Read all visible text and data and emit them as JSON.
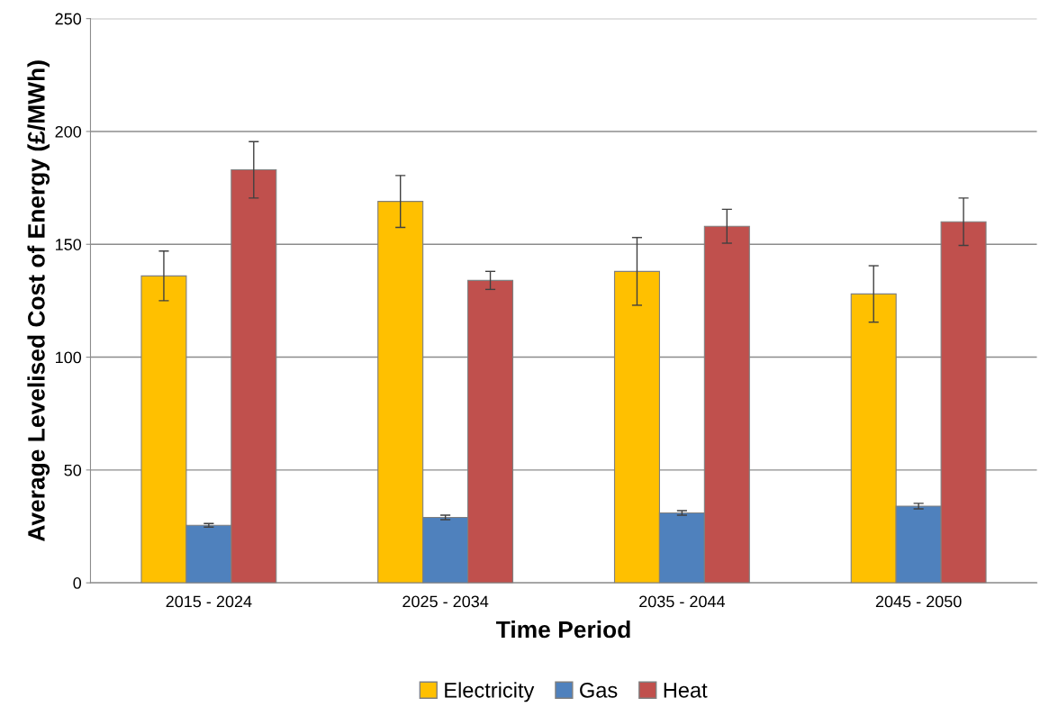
{
  "chart_data": {
    "type": "bar",
    "xlabel": "Time Period",
    "ylabel": "Average Levelised Cost of Energy (£/MWh)",
    "categories": [
      "2015 - 2024",
      "2025 - 2034",
      "2035 - 2044",
      "2045 - 2050"
    ],
    "series": [
      {
        "name": "Electricity",
        "color": "#ffc000",
        "values": [
          136,
          169,
          138,
          128
        ],
        "errors": [
          11,
          11.5,
          15,
          12.5
        ]
      },
      {
        "name": "Gas",
        "color": "#4f81bd",
        "values": [
          25.5,
          29,
          31,
          34
        ],
        "errors": [
          0.8,
          1,
          1,
          1.2
        ]
      },
      {
        "name": "Heat",
        "color": "#c0504d",
        "values": [
          183,
          134,
          158,
          160
        ],
        "errors": [
          12.5,
          4,
          7.5,
          10.5
        ]
      }
    ],
    "ylim": [
      0,
      250
    ],
    "yticks": [
      0,
      50,
      100,
      150,
      200,
      250
    ],
    "grid": "y",
    "legend": "bottom"
  }
}
